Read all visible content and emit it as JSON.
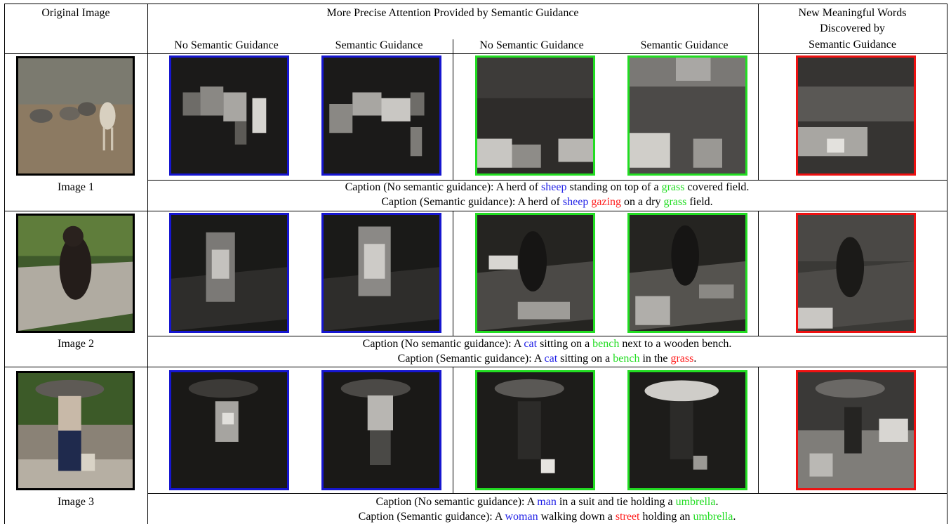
{
  "header": {
    "col_original": "Original Image",
    "col_group": "More Precise Attention Provided by Semantic Guidance",
    "col_new_words": [
      "New Meaningful Words",
      "Discovered by",
      "Semantic Guidance"
    ],
    "sub_no_guidance": "No Semantic Guidance",
    "sub_guidance": "Semantic Guidance"
  },
  "colors": {
    "word_1": "#1f1fe6",
    "word_2": "#22dd22",
    "new_word": "#ff2020",
    "frame_1": "#1616d0",
    "frame_2": "#22dd22",
    "frame_new": "#ee1111"
  },
  "rows": [
    {
      "image_label": "Image 1",
      "caption_no": [
        {
          "t": "Caption (No semantic guidance): A herd of ",
          "c": ""
        },
        {
          "t": "sheep",
          "c": "word_1"
        },
        {
          "t": " standing on top of a ",
          "c": ""
        },
        {
          "t": "grass",
          "c": "word_2"
        },
        {
          "t": " covered field.",
          "c": ""
        }
      ],
      "caption_sg": [
        {
          "t": "Caption (Semantic guidance): A herd of ",
          "c": ""
        },
        {
          "t": "sheep",
          "c": "word_1"
        },
        {
          "t": " ",
          "c": ""
        },
        {
          "t": "gazing",
          "c": "new_word"
        },
        {
          "t": " on a dry ",
          "c": ""
        },
        {
          "t": "grass",
          "c": "word_2"
        },
        {
          "t": " field.",
          "c": ""
        }
      ]
    },
    {
      "image_label": "Image 2",
      "caption_no": [
        {
          "t": "Caption (No semantic guidance): A ",
          "c": ""
        },
        {
          "t": "cat",
          "c": "word_1"
        },
        {
          "t": " sitting on a ",
          "c": ""
        },
        {
          "t": "bench",
          "c": "word_2"
        },
        {
          "t": " next to a wooden bench.",
          "c": ""
        }
      ],
      "caption_sg": [
        {
          "t": "Caption (Semantic guidance): A ",
          "c": ""
        },
        {
          "t": "cat",
          "c": "word_1"
        },
        {
          "t": " sitting on a ",
          "c": ""
        },
        {
          "t": "bench",
          "c": "word_2"
        },
        {
          "t": " in the ",
          "c": ""
        },
        {
          "t": "grass",
          "c": "new_word"
        },
        {
          "t": ".",
          "c": ""
        }
      ]
    },
    {
      "image_label": "Image 3",
      "caption_no": [
        {
          "t": "Caption (No semantic guidance): A ",
          "c": ""
        },
        {
          "t": "man",
          "c": "word_1"
        },
        {
          "t": " in a suit and tie holding a ",
          "c": ""
        },
        {
          "t": "umbrella",
          "c": "word_2"
        },
        {
          "t": ".",
          "c": ""
        }
      ],
      "caption_sg": [
        {
          "t": "Caption (Semantic guidance): A ",
          "c": ""
        },
        {
          "t": "woman",
          "c": "word_1"
        },
        {
          "t": " walking down a ",
          "c": ""
        },
        {
          "t": "street",
          "c": "new_word"
        },
        {
          "t": " holding an ",
          "c": ""
        },
        {
          "t": "umbrella",
          "c": "word_2"
        },
        {
          "t": ".",
          "c": ""
        }
      ]
    }
  ]
}
